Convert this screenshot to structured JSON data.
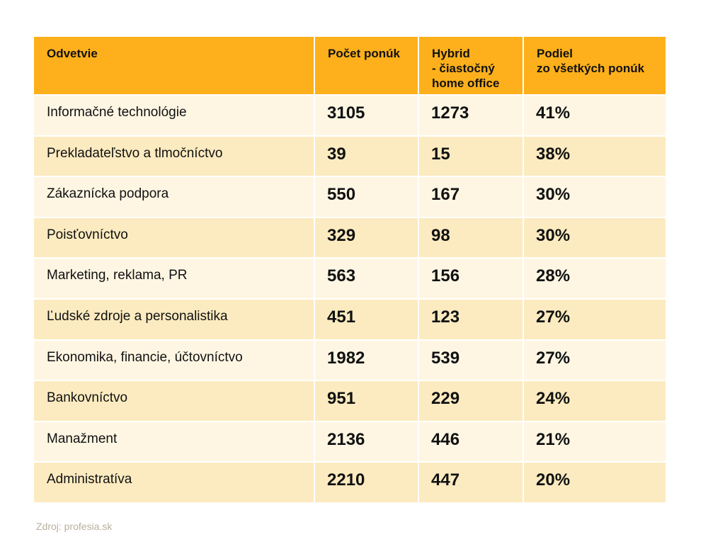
{
  "chart_data": {
    "type": "table",
    "headers": [
      [
        "Odvetvie"
      ],
      [
        "Počet ponúk"
      ],
      [
        "Hybrid",
        "- čiastočný",
        "home office"
      ],
      [
        "Podiel",
        "zo všetkých ponúk"
      ]
    ],
    "rows": [
      [
        "Informačné technológie",
        "3105",
        "1273",
        "41%"
      ],
      [
        "Prekladateľstvo a tlmočníctvo",
        "39",
        "15",
        "38%"
      ],
      [
        "Zákaznícka podpora",
        "550",
        "167",
        "30%"
      ],
      [
        "Poisťovníctvo",
        "329",
        "98",
        "30%"
      ],
      [
        "Marketing, reklama, PR",
        "563",
        "156",
        "28%"
      ],
      [
        "Ľudské zdroje a personalistika",
        "451",
        "123",
        "27%"
      ],
      [
        "Ekonomika, financie, účtovníctvo",
        "1982",
        "539",
        "27%"
      ],
      [
        "Bankovníctvo",
        "951",
        "229",
        "24%"
      ],
      [
        "Manažment",
        "2136",
        "446",
        "21%"
      ],
      [
        "Administratíva",
        "2210",
        "447",
        "20%"
      ]
    ],
    "source": "Zdroj: profesia.sk",
    "colors": {
      "header": "#FDB01B",
      "row_light": "#FEF6E3",
      "row_dark": "#FCEBC0"
    }
  }
}
